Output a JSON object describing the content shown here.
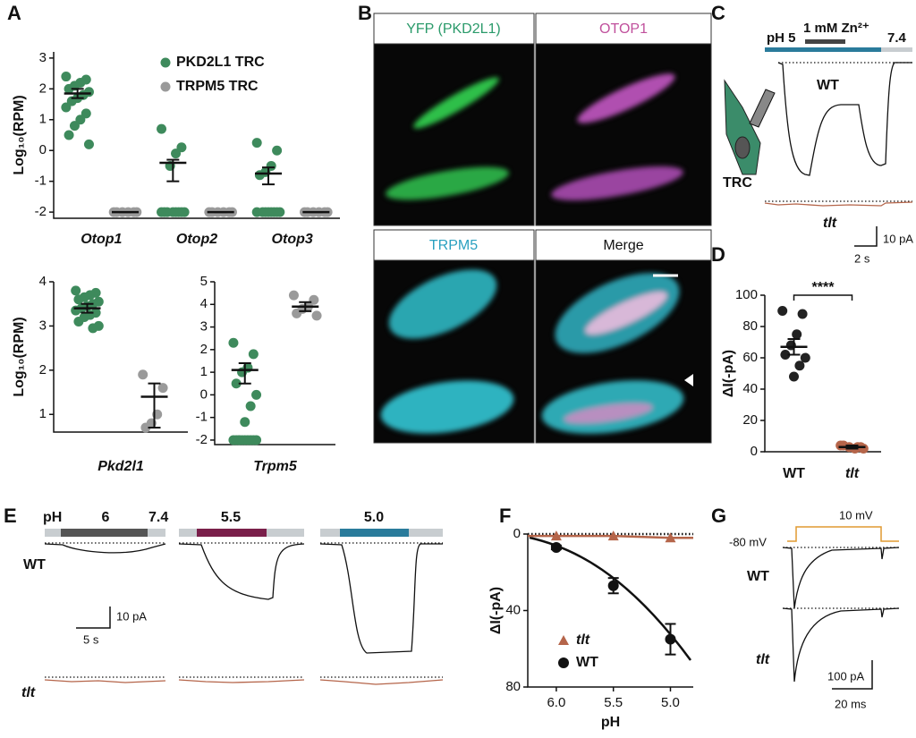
{
  "panel_labels": [
    "A",
    "B",
    "C",
    "D",
    "E",
    "F",
    "G"
  ],
  "images": {
    "titles": [
      "YFP (PKD2L1)",
      "OTOP1",
      "TRPM5",
      "Merge"
    ]
  },
  "panel_c": {
    "ph_start": "pH 5",
    "zinc": "1 mM Zn²⁺",
    "ph_end": "7.4",
    "wt": "WT",
    "cell": "TRC",
    "tlt": "tlt",
    "scale_y": "10 pA",
    "scale_x": "2 s"
  },
  "panel_e": {
    "ph": "pH",
    "steps": [
      "6",
      "7.4",
      "5.5",
      "5.0"
    ],
    "wt": "WT",
    "tlt": "tlt",
    "scale_y": "10 pA",
    "scale_x": "5 s"
  },
  "panel_g": {
    "step": "10 mV",
    "hold": "-80 mV",
    "wt": "WT",
    "tlt": "tlt",
    "scale_y": "100 pA",
    "scale_x": "20 ms"
  },
  "chart_data": [
    {
      "type": "strip",
      "ylabel": "Log₁₀(RPM)",
      "categories": [
        "Otop1",
        "Otop2",
        "Otop3"
      ],
      "ylim": [
        -2.2,
        3.2
      ],
      "yticks": [
        -2,
        -1,
        0,
        1,
        2,
        3
      ],
      "legend": "top-right",
      "series": [
        {
          "name": "PKD2L1 TRC",
          "color": "#3e8a5c",
          "values": [
            1.85,
            -0.4,
            -0.75
          ],
          "lower": [
            1.7,
            -1.0,
            -1.1
          ],
          "upper": [
            2.0,
            -0.3,
            -0.55
          ],
          "points": [
            [
              2.4,
              2.3,
              2.2,
              2.1,
              2.0,
              1.9,
              1.8,
              1.7,
              1.6,
              1.4,
              1.2,
              1.0,
              0.8,
              0.5,
              0.2
            ],
            [
              0.7,
              0.1,
              -0.1,
              -0.5,
              -2,
              -2,
              -2,
              -2,
              -2,
              -2,
              -2,
              -2
            ],
            [
              0.25,
              0,
              -0.5,
              -0.7,
              -0.8,
              -2,
              -2,
              -2,
              -2,
              -2,
              -2,
              -2,
              -2
            ]
          ]
        },
        {
          "name": "TRPM5 TRC",
          "color": "#9a9a9a",
          "values": [
            -2,
            -2,
            -2
          ],
          "lower": [
            -2,
            -2,
            -2
          ],
          "upper": [
            -2,
            -2,
            -2
          ],
          "points": [
            [
              -2,
              -2,
              -2,
              -2,
              -2,
              -2
            ],
            [
              -2,
              -2,
              -2,
              -2,
              -2,
              -2
            ],
            [
              -2,
              -2,
              -2,
              -2,
              -2,
              -2
            ]
          ]
        }
      ]
    },
    {
      "type": "strip",
      "ylabel": "Log₁₀(RPM)",
      "categories": [
        "Pkd2l1"
      ],
      "ylim": [
        0.6,
        4
      ],
      "yticks": [
        1,
        2,
        3,
        4
      ],
      "series": [
        {
          "color": "#3e8a5c",
          "values": [
            3.4
          ],
          "lower": [
            3.3
          ],
          "upper": [
            3.5
          ],
          "points": [
            [
              3.8,
              3.75,
              3.7,
              3.65,
              3.6,
              3.55,
              3.5,
              3.45,
              3.4,
              3.35,
              3.3,
              3.25,
              3.2,
              3.1,
              3.0,
              2.95
            ]
          ]
        },
        {
          "color": "#9a9a9a",
          "values": [
            1.4
          ],
          "lower": [
            0.7
          ],
          "upper": [
            1.7
          ],
          "points": [
            [
              1.9,
              1.6,
              1.0,
              0.8,
              0.7
            ]
          ]
        }
      ]
    },
    {
      "type": "strip",
      "categories": [
        "Trpm5"
      ],
      "ylim": [
        -2.2,
        5
      ],
      "yticks": [
        -2,
        -1,
        0,
        1,
        2,
        3,
        4,
        5
      ],
      "series": [
        {
          "color": "#3e8a5c",
          "values": [
            1.1
          ],
          "lower": [
            0.5
          ],
          "upper": [
            1.4
          ],
          "points": [
            [
              2.3,
              1.8,
              1.2,
              1.0,
              0.5,
              0,
              -0.5,
              -1.2,
              -2,
              -2,
              -2,
              -2,
              -2,
              -2,
              -2,
              -2,
              -2,
              -2
            ]
          ]
        },
        {
          "color": "#9a9a9a",
          "values": [
            3.9
          ],
          "lower": [
            3.7
          ],
          "upper": [
            4.1
          ],
          "points": [
            [
              4.4,
              4.2,
              3.9,
              3.8,
              3.6,
              3.5
            ]
          ]
        }
      ]
    },
    {
      "type": "strip",
      "ylabel": "ΔI(-pA)",
      "categories": [
        "WT",
        "tlt"
      ],
      "ylim": [
        0,
        100
      ],
      "yticks": [
        0,
        20,
        40,
        60,
        80,
        100
      ],
      "annotation": "****",
      "series": [
        {
          "colors": [
            "#222222",
            "#b5654a"
          ],
          "values": [
            67,
            3
          ],
          "lower": [
            62,
            2
          ],
          "upper": [
            72,
            4
          ],
          "points": [
            [
              90,
              88,
              75,
              68,
              62,
              60,
              55,
              48
            ],
            [
              4,
              3,
              2,
              3,
              4,
              2,
              3
            ]
          ]
        }
      ]
    },
    {
      "type": "line",
      "xlabel": "pH",
      "ylabel": "ΔI(-pA)",
      "x": [
        6.0,
        5.5,
        5.0
      ],
      "xlim": [
        6.25,
        4.8
      ],
      "xticks": [
        {
          "value": 6.0,
          "label": "6.0"
        },
        {
          "value": 5.5,
          "label": "5.5"
        },
        {
          "value": 5.0,
          "label": "5.0"
        }
      ],
      "ylim": [
        0,
        80
      ],
      "y_reversed": true,
      "yticks": [
        0,
        40,
        80
      ],
      "legend": "bottom-left",
      "series": [
        {
          "name": "tlt",
          "color": "#b5654a",
          "marker": "triangle",
          "values": [
            1,
            1,
            2
          ]
        },
        {
          "name": "WT",
          "color": "#111111",
          "marker": "circle",
          "values": [
            7,
            27,
            55
          ],
          "errors": [
            1,
            4,
            8
          ]
        }
      ]
    }
  ]
}
